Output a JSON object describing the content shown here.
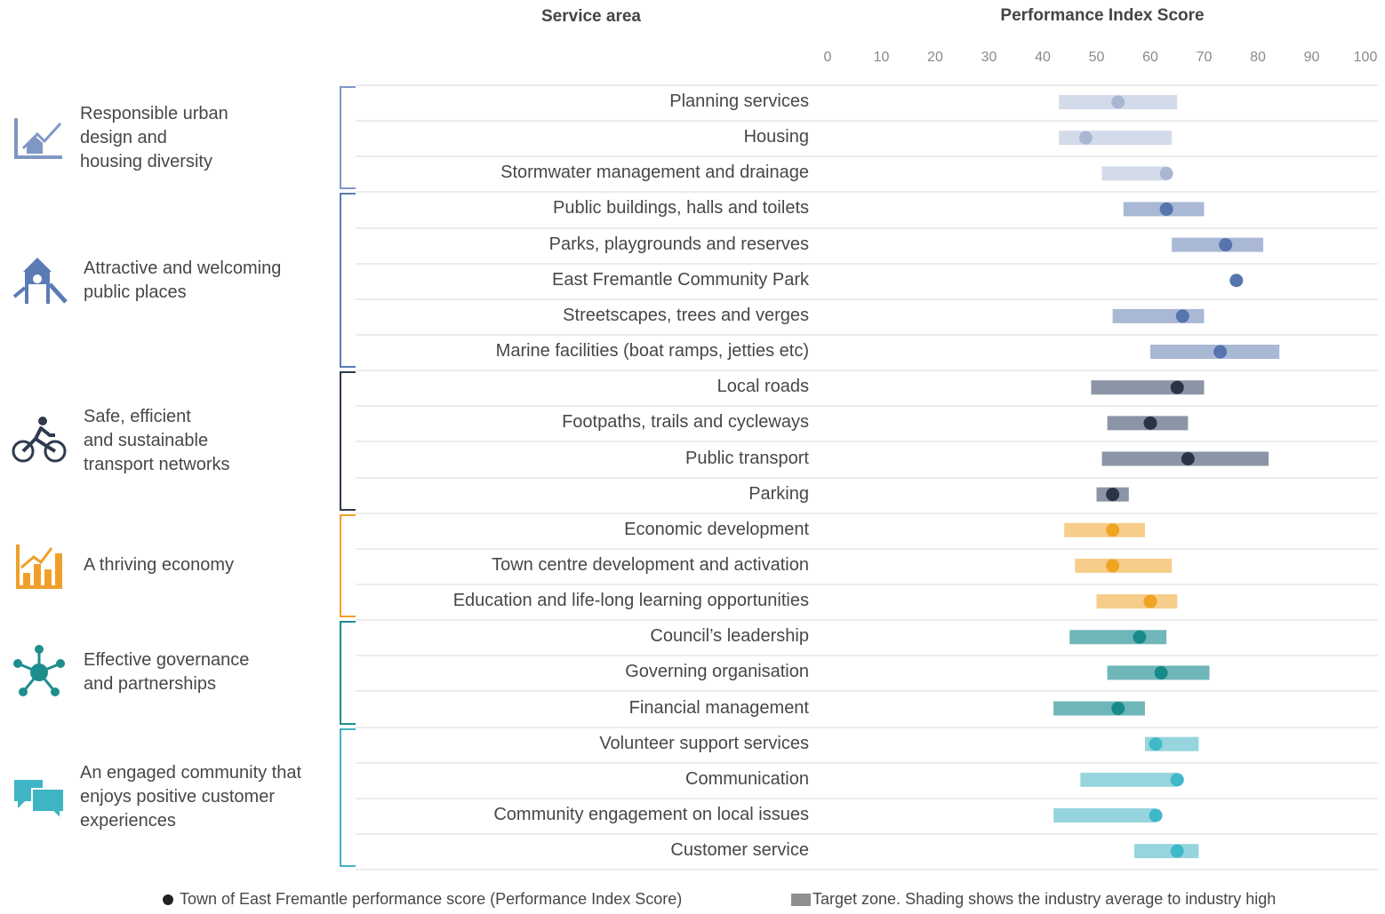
{
  "header": {
    "service_area": "Service area",
    "score": "Performance Index Score"
  },
  "legend": {
    "dot_label": "Town of East Fremantle performance score (Performance Index Score)",
    "zone_label": "Target zone. Shading shows the industry average to industry high"
  },
  "themes": [
    {
      "label_lines": [
        "Responsible urban",
        "design and",
        "housing diversity"
      ],
      "icon": "house-chart-icon",
      "color": "#7f97c4"
    },
    {
      "label_lines": [
        "Attractive and welcoming",
        "public places"
      ],
      "icon": "playground-icon",
      "color": "#5b7bb5"
    },
    {
      "label_lines": [
        "Safe, efficient",
        "and sustainable",
        "transport networks"
      ],
      "icon": "cyclist-icon",
      "color": "#2f3a4f"
    },
    {
      "label_lines": [
        "A thriving economy"
      ],
      "icon": "bar-chart-icon",
      "color": "#f0a02a"
    },
    {
      "label_lines": [
        "Effective governance",
        "and partnerships"
      ],
      "icon": "network-icon",
      "color": "#1e8d8d"
    },
    {
      "label_lines": [
        "An engaged community that",
        "enjoys positive customer",
        "experiences"
      ],
      "icon": "chat-bubbles-icon",
      "color": "#3fb4c4"
    }
  ],
  "chart_data": {
    "type": "range-dot",
    "title": "Performance Index Score",
    "xlim": [
      0,
      100
    ],
    "xticks": [
      0,
      10,
      20,
      30,
      40,
      50,
      60,
      70,
      80,
      90,
      100
    ],
    "grid": true,
    "legend_position": "bottom",
    "series": [
      {
        "name": "Town of East Fremantle performance score (Performance Index Score)"
      },
      {
        "name": "Target zone. Shading shows the industry average to industry high"
      }
    ],
    "rows": [
      {
        "label": "Planning services",
        "theme": 0,
        "score": 54,
        "zone": [
          43,
          65
        ],
        "dot": "#a9b7d3",
        "band": "#d3dbea"
      },
      {
        "label": "Housing",
        "theme": 0,
        "score": 48,
        "zone": [
          43,
          64
        ],
        "dot": "#a9b7d3",
        "band": "#d3dbea"
      },
      {
        "label": "Stormwater management and drainage",
        "theme": 0,
        "score": 63,
        "zone": [
          51,
          63
        ],
        "dot": "#a9b7d3",
        "band": "#d3dbea"
      },
      {
        "label": "Public buildings, halls and toilets",
        "theme": 1,
        "score": 63,
        "zone": [
          55,
          70
        ],
        "dot": "#5674ad",
        "band": "#a9b8d5"
      },
      {
        "label": "Parks, playgrounds and reserves",
        "theme": 1,
        "score": 74,
        "zone": [
          64,
          81
        ],
        "dot": "#5674ad",
        "band": "#a9b8d5"
      },
      {
        "label": "East Fremantle Community Park",
        "theme": 1,
        "score": 76,
        "zone": null,
        "dot": "#5674ad",
        "band": "#a9b8d5"
      },
      {
        "label": "Streetscapes, trees and verges",
        "theme": 1,
        "score": 66,
        "zone": [
          53,
          70
        ],
        "dot": "#5674ad",
        "band": "#a9b8d5"
      },
      {
        "label": "Marine facilities (boat ramps, jetties etc)",
        "theme": 1,
        "score": 73,
        "zone": [
          60,
          84
        ],
        "dot": "#5674ad",
        "band": "#a9b8d5"
      },
      {
        "label": "Local roads",
        "theme": 2,
        "score": 65,
        "zone": [
          49,
          70
        ],
        "dot": "#2b3446",
        "band": "#8b95a6"
      },
      {
        "label": "Footpaths, trails and cycleways",
        "theme": 2,
        "score": 60,
        "zone": [
          52,
          67
        ],
        "dot": "#2b3446",
        "band": "#8b95a6"
      },
      {
        "label": "Public transport",
        "theme": 2,
        "score": 67,
        "zone": [
          51,
          82
        ],
        "dot": "#2b3446",
        "band": "#8b95a6"
      },
      {
        "label": "Parking",
        "theme": 2,
        "score": 53,
        "zone": [
          50,
          56
        ],
        "dot": "#2b3446",
        "band": "#8b95a6"
      },
      {
        "label": "Economic development",
        "theme": 3,
        "score": 53,
        "zone": [
          44,
          59
        ],
        "dot": "#f0a424",
        "band": "#f6cd8a"
      },
      {
        "label": "Town centre development and activation",
        "theme": 3,
        "score": 53,
        "zone": [
          46,
          64
        ],
        "dot": "#f0a424",
        "band": "#f6cd8a"
      },
      {
        "label": "Education and life-long learning opportunities",
        "theme": 3,
        "score": 60,
        "zone": [
          50,
          65
        ],
        "dot": "#f0a424",
        "band": "#f6cd8a"
      },
      {
        "label": "Council’s leadership",
        "theme": 4,
        "score": 58,
        "zone": [
          45,
          63
        ],
        "dot": "#178a8a",
        "band": "#6fb6b8"
      },
      {
        "label": "Governing organisation",
        "theme": 4,
        "score": 62,
        "zone": [
          52,
          71
        ],
        "dot": "#178a8a",
        "band": "#6fb6b8"
      },
      {
        "label": "Financial management",
        "theme": 4,
        "score": 54,
        "zone": [
          42,
          59
        ],
        "dot": "#178a8a",
        "band": "#6fb6b8"
      },
      {
        "label": "Volunteer support services",
        "theme": 5,
        "score": 61,
        "zone": [
          59,
          69
        ],
        "dot": "#3fb8c8",
        "band": "#97d5de"
      },
      {
        "label": "Communication",
        "theme": 5,
        "score": 65,
        "zone": [
          47,
          65
        ],
        "dot": "#3fb8c8",
        "band": "#97d5de"
      },
      {
        "label": "Community engagement on local issues",
        "theme": 5,
        "score": 61,
        "zone": [
          42,
          61
        ],
        "dot": "#3fb8c8",
        "band": "#97d5de"
      },
      {
        "label": "Customer service",
        "theme": 5,
        "score": 65,
        "zone": [
          57,
          69
        ],
        "dot": "#3fb8c8",
        "band": "#97d5de"
      }
    ]
  }
}
